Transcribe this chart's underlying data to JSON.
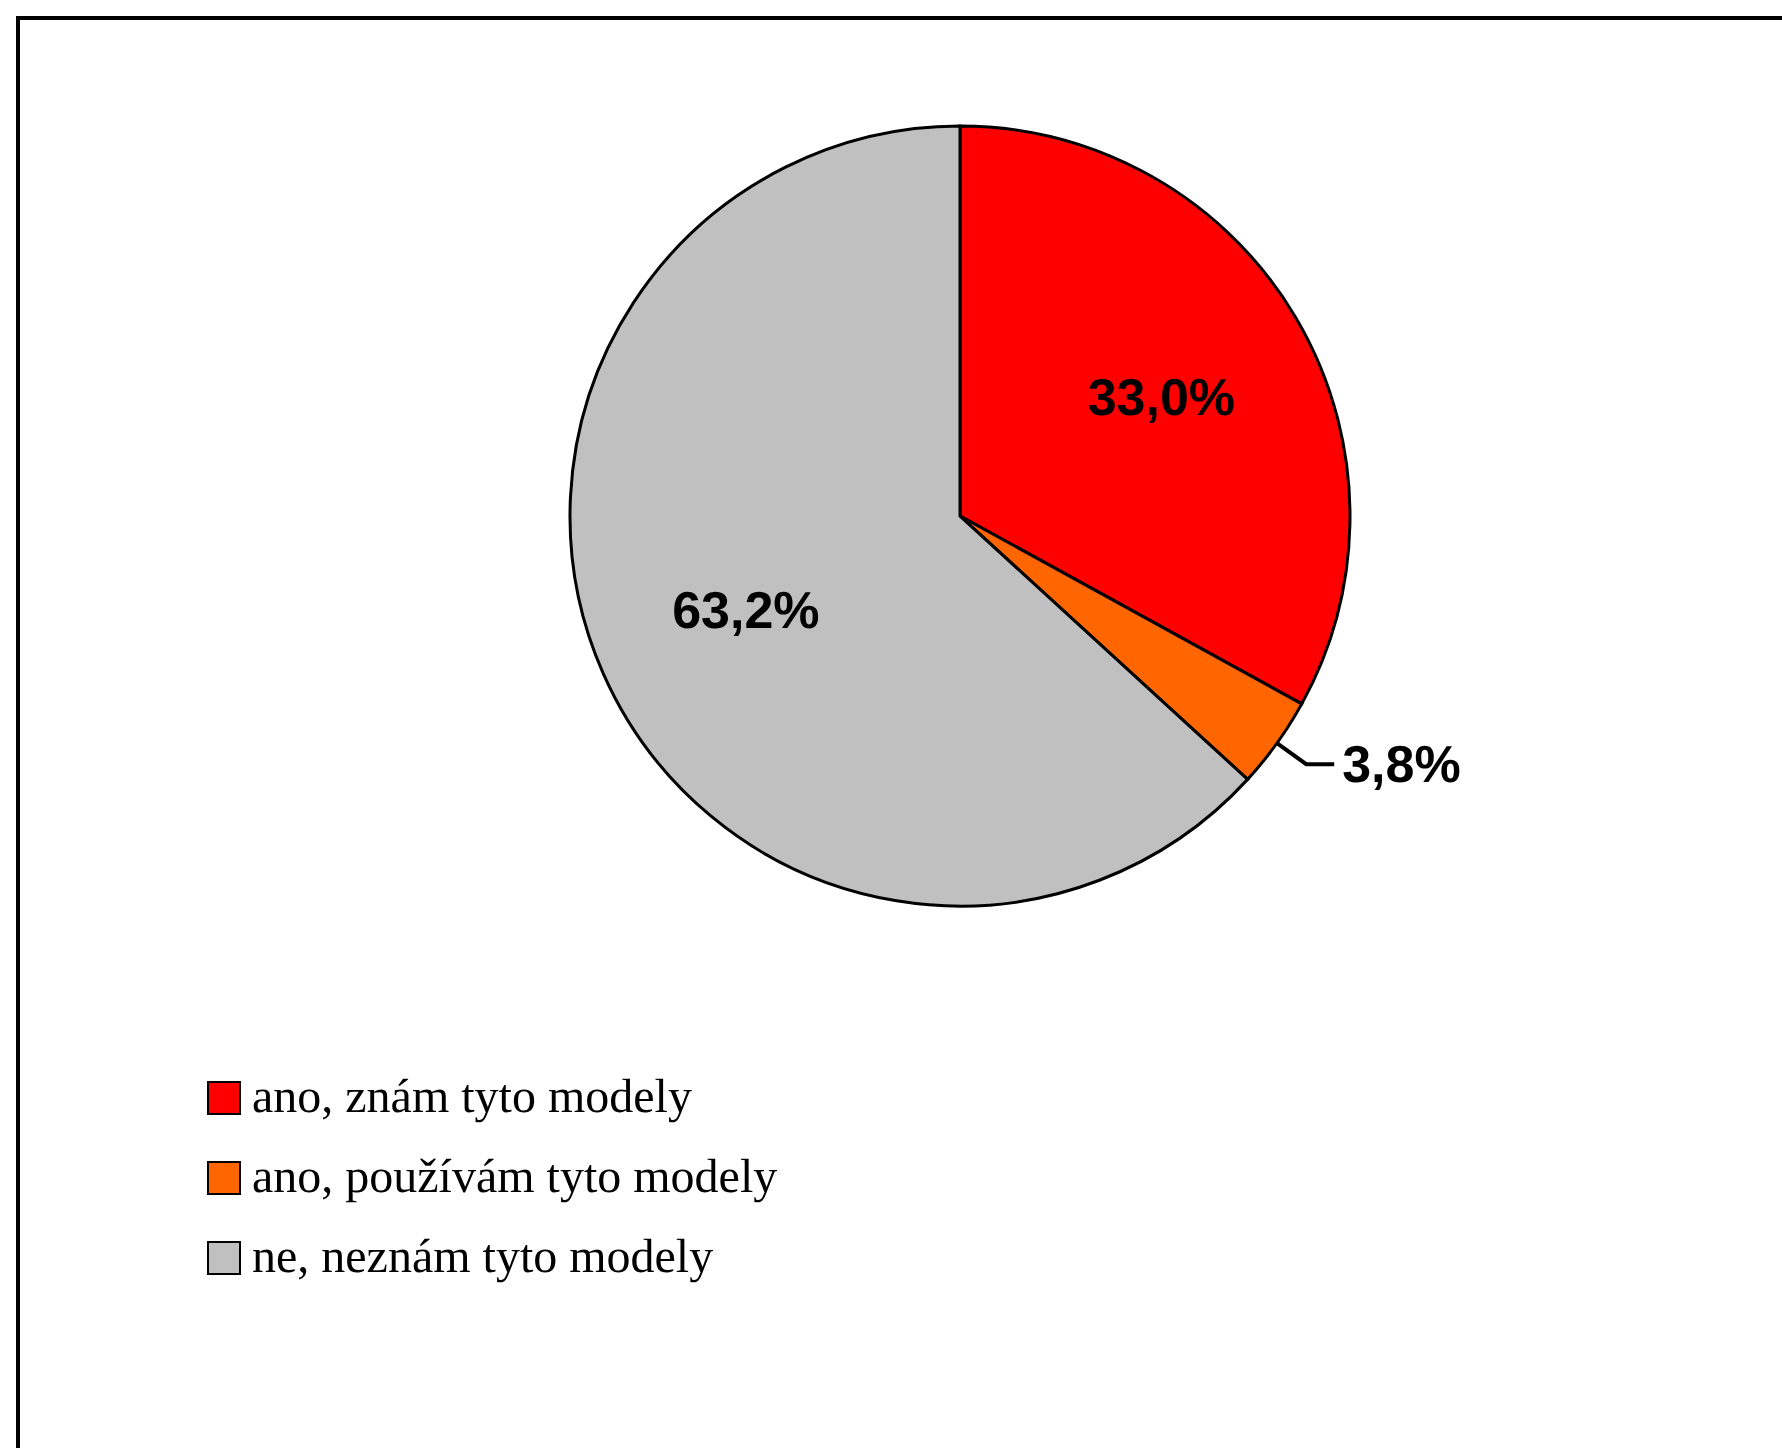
{
  "chart_data": {
    "type": "pie",
    "categories": [
      "ano, znám tyto modely",
      "ano, používám tyto modely",
      "ne, neznám tyto modely"
    ],
    "values": [
      33.0,
      3.8,
      63.2
    ],
    "colors": [
      "#ff0000",
      "#ff6600",
      "#c0c0c0"
    ],
    "value_labels": [
      "33,0%",
      "3,8%",
      "63,2%"
    ],
    "legend": "bottom left"
  }
}
